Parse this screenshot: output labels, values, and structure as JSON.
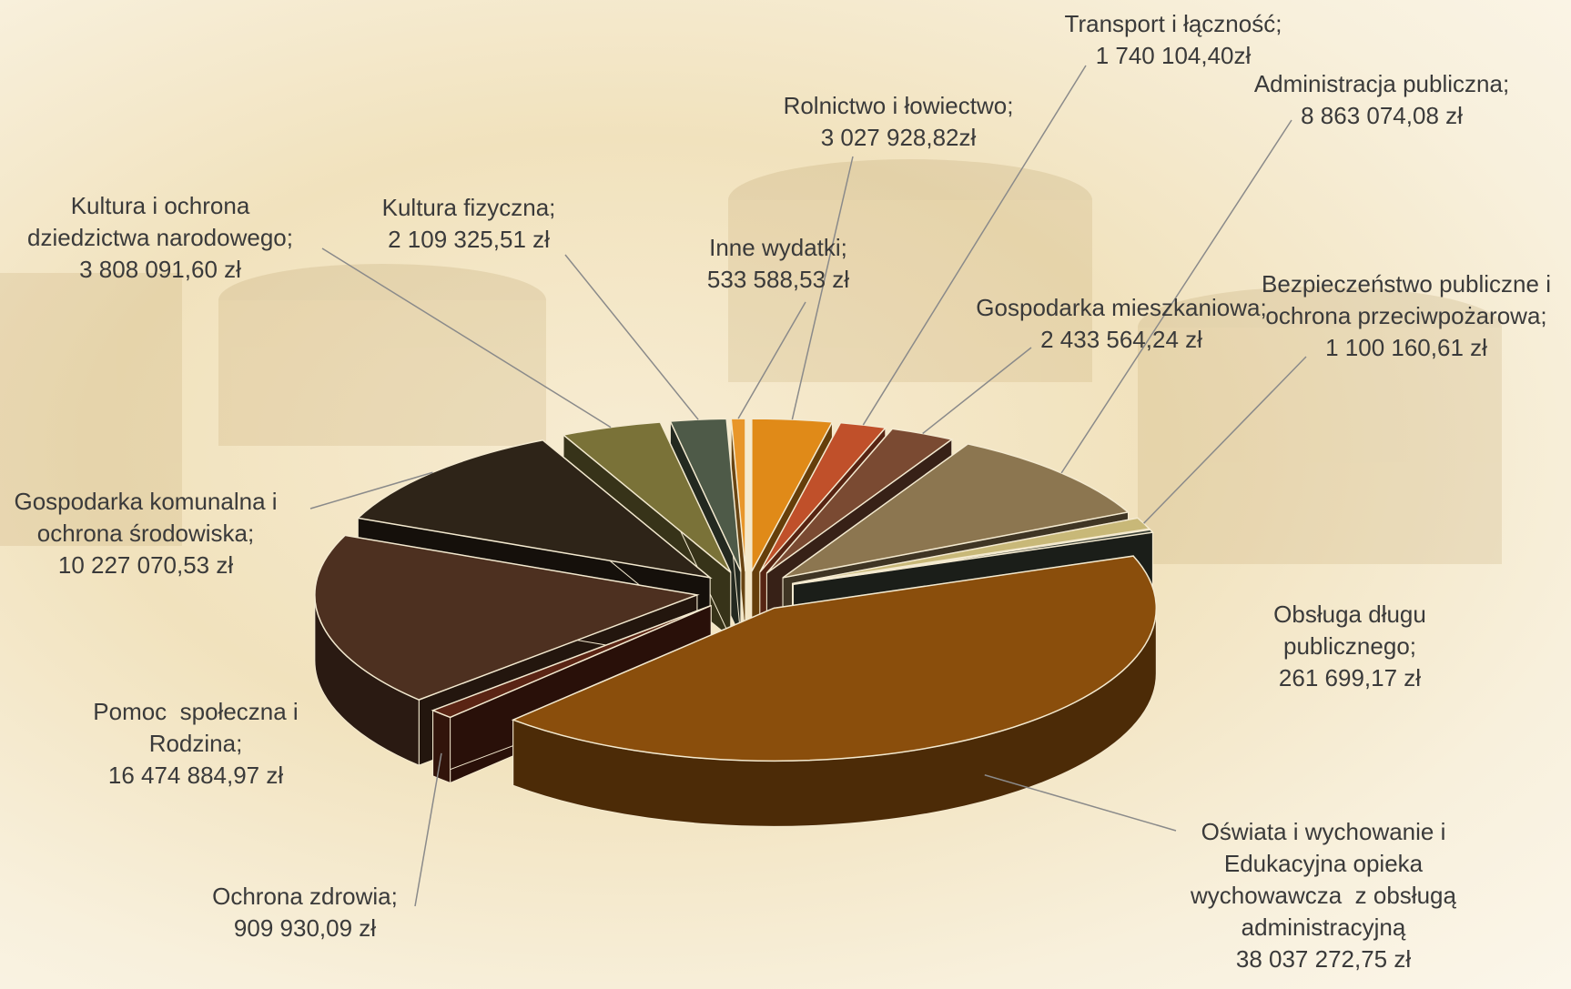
{
  "chart_data": {
    "type": "pie3d",
    "categories": [
      "Rolnictwo i łowiectwo;",
      "Transport i łączność;",
      "Gospodarka mieszkaniowa;",
      "Administracja publiczna;",
      "Bezpieczeństwo publiczne i ochrona przeciwpożarowa;",
      "Obsługa długu publicznego;",
      "Oświata i wychowanie i Edukacyjna opieka wychowawcza  z obsługą administracyjną",
      "Ochrona zdrowia;",
      "Pomoc  społeczna i Rodzina;",
      "Gospodarka komunalna i ochrona środowiska;",
      "Kultura i ochrona dziedzictwa narodowego;",
      "Kultura fizyczna;",
      "Inne wydatki;"
    ],
    "values": [
      3027928.82,
      1740104.4,
      2433564.24,
      8863074.08,
      1100160.61,
      261699.17,
      38037272.75,
      909930.09,
      16474884.97,
      10227070.53,
      3808091.6,
      2109325.51,
      533588.53
    ],
    "value_labels": [
      "3 027 928,82zł",
      "1 740 104,40zł",
      "2 433 564,24 zł",
      "8 863 074,08 zł",
      "1 100 160,61 zł",
      "261 699,17 zł",
      "38 037 272,75 zł",
      "909 930,09 zł",
      "16 474 884,97 zł",
      "10 227 070,53 zł",
      "3 808 091,60 zł",
      "2 109 325,51 zł",
      "533 588,53 zł"
    ],
    "colors": [
      "#e08a18",
      "#c0502a",
      "#7a4a32",
      "#8c7650",
      "#c8b878",
      "#3c4238",
      "#8a4e0c",
      "#5a2414",
      "#4d3020",
      "#2e2418",
      "#7a7238",
      "#4e5a48",
      "#e8962a"
    ]
  }
}
